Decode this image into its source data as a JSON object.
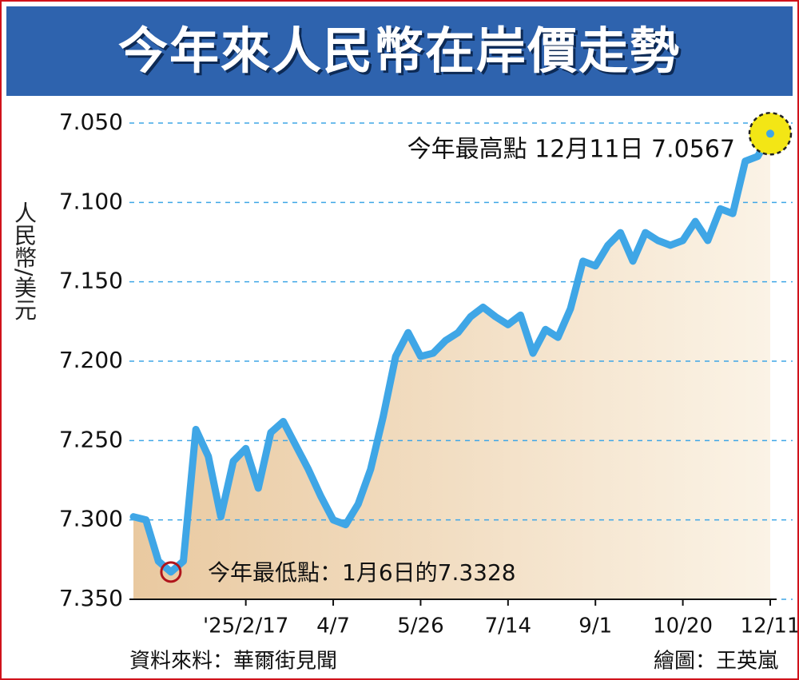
{
  "chart_data": {
    "type": "line",
    "title": "今年來人民幣在岸價走勢",
    "y_label": "人民幣/美元",
    "categories": [
      null,
      null,
      null,
      null,
      null,
      null,
      null,
      null,
      null,
      "'25/2/17",
      null,
      null,
      null,
      null,
      null,
      null,
      "4/7",
      null,
      null,
      null,
      null,
      null,
      null,
      "5/26",
      null,
      null,
      null,
      null,
      null,
      null,
      "7/14",
      null,
      null,
      null,
      null,
      null,
      null,
      "9/1",
      null,
      null,
      null,
      null,
      null,
      null,
      "10/20",
      null,
      null,
      null,
      null,
      null,
      null,
      "12/11"
    ],
    "values": [
      7.298,
      7.3,
      7.326,
      7.3328,
      7.326,
      7.243,
      7.26,
      7.298,
      7.263,
      7.255,
      7.28,
      7.245,
      7.238,
      7.253,
      7.268,
      7.285,
      7.3,
      7.303,
      7.29,
      7.268,
      7.235,
      7.197,
      7.182,
      7.197,
      7.195,
      7.187,
      7.182,
      7.172,
      7.166,
      7.172,
      7.177,
      7.171,
      7.195,
      7.18,
      7.185,
      7.167,
      7.137,
      7.14,
      7.127,
      7.119,
      7.137,
      7.119,
      7.124,
      7.127,
      7.124,
      7.112,
      7.124,
      7.104,
      7.107,
      7.074,
      7.071,
      7.0567
    ],
    "color": "#3fa6e6",
    "ylim": [
      7.35,
      7.05
    ],
    "yticks": [
      {
        "value": 7.05,
        "label": "7.050"
      },
      {
        "value": 7.1,
        "label": "7.100"
      },
      {
        "value": 7.15,
        "label": "7.150"
      },
      {
        "value": 7.2,
        "label": "7.200"
      },
      {
        "value": 7.25,
        "label": "7.250"
      },
      {
        "value": 7.3,
        "label": "7.300"
      },
      {
        "value": 7.35,
        "label": "7.350"
      }
    ],
    "grid": true,
    "annotations": [
      "今年最高點 12月11日 7.0567",
      "今年最低點：1月6日的7.3328"
    ],
    "source": "資料來料：華爾街見聞",
    "credit": "繪圖：王英嵐"
  }
}
